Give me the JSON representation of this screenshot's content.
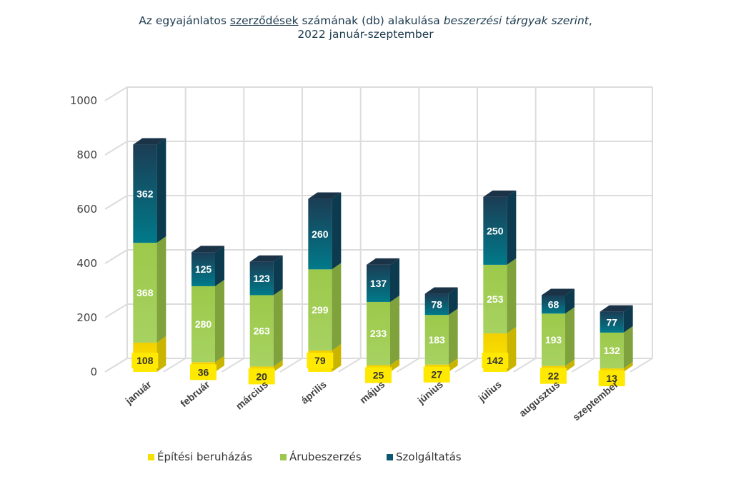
{
  "title": {
    "part1": "Az egyajánlatos ",
    "part2": "szerződések",
    "part3": " számának (db) alakulása ",
    "part4": "beszerzési tárgyak szerint",
    "part5": ",",
    "line2": "2022 január-szeptember"
  },
  "colors": {
    "epitesi": "#f5e000",
    "aru": "#9dc74e",
    "szolg_top": "#1b3d55",
    "szolg_bottom": "#007a8a",
    "grid": "#dcdcdc",
    "axis_text": "#404040"
  },
  "chart_data": {
    "type": "bar",
    "stacked": true,
    "categories": [
      "január",
      "február",
      "március",
      "április",
      "május",
      "június",
      "július",
      "augusztus",
      "szeptember"
    ],
    "series": [
      {
        "name": "Építési beruházás",
        "values": [
          108,
          36,
          20,
          79,
          25,
          27,
          142,
          22,
          13
        ]
      },
      {
        "name": "Árubeszerzés",
        "values": [
          368,
          280,
          263,
          299,
          233,
          183,
          253,
          193,
          132
        ]
      },
      {
        "name": "Szolgáltatás",
        "values": [
          362,
          125,
          123,
          260,
          137,
          78,
          250,
          68,
          77
        ]
      }
    ],
    "ylim": [
      0,
      1000
    ],
    "yticks": [
      0,
      200,
      400,
      600,
      800,
      1000
    ],
    "grid": true,
    "legend": "bottom"
  },
  "legend": {
    "items": [
      "Építési beruházás",
      "Árubeszerzés",
      "Szolgáltatás"
    ]
  }
}
